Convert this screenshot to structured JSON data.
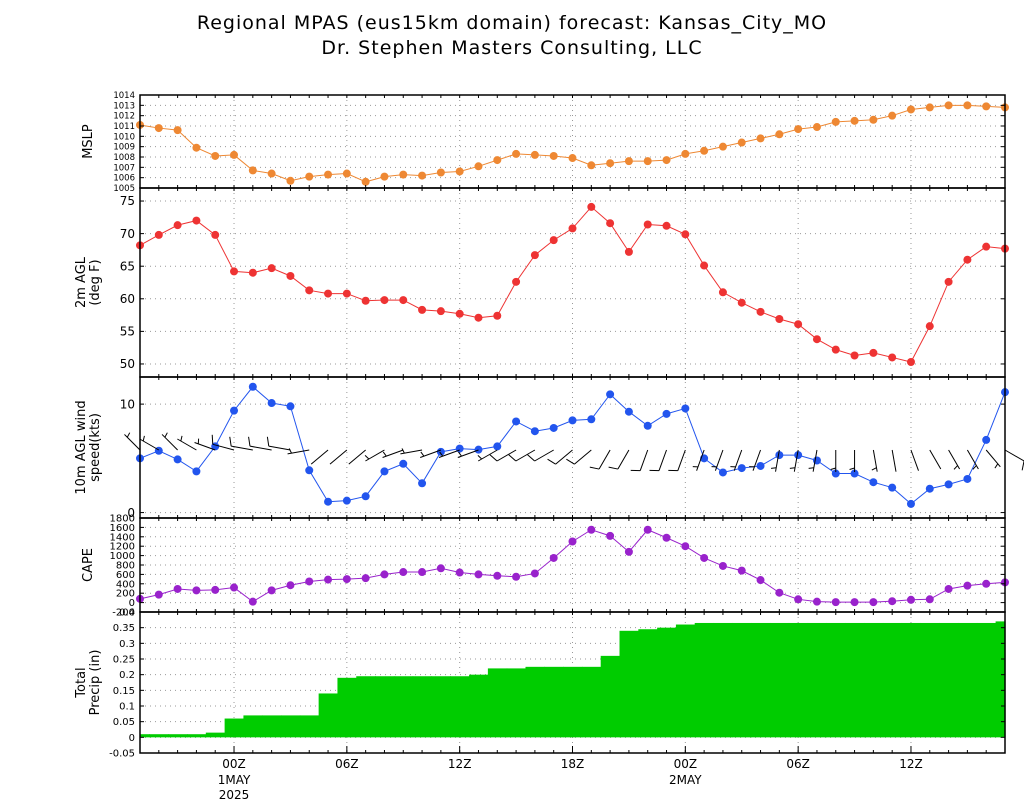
{
  "title_line1": "Regional MPAS (eus15km domain) forecast: Kansas_City_MO",
  "title_line2": "Dr. Stephen Masters Consulting, LLC",
  "time_axis": {
    "labels": [
      {
        "i": 5,
        "text": "00Z",
        "sub": [
          "1MAY",
          "2025"
        ]
      },
      {
        "i": 11,
        "text": "06Z",
        "sub": []
      },
      {
        "i": 17,
        "text": "12Z",
        "sub": []
      },
      {
        "i": 23,
        "text": "18Z",
        "sub": []
      },
      {
        "i": 29,
        "text": "00Z",
        "sub": [
          "2MAY"
        ]
      },
      {
        "i": 35,
        "text": "06Z",
        "sub": []
      },
      {
        "i": 41,
        "text": "12Z",
        "sub": []
      }
    ]
  },
  "chart_data": [
    {
      "type": "line",
      "ylabel": [
        "MSLP"
      ],
      "color": "#ee8833",
      "ylim": [
        1005,
        1014
      ],
      "yticks": [
        1005,
        1006,
        1007,
        1008,
        1009,
        1010,
        1011,
        1012,
        1013,
        1014
      ],
      "values": [
        1011.1,
        1010.8,
        1010.6,
        1008.9,
        1008.1,
        1008.2,
        1006.7,
        1006.4,
        1005.7,
        1006.1,
        1006.3,
        1006.4,
        1005.6,
        1006.1,
        1006.3,
        1006.2,
        1006.5,
        1006.6,
        1007.1,
        1007.7,
        1008.3,
        1008.2,
        1008.1,
        1007.9,
        1007.2,
        1007.4,
        1007.6,
        1007.6,
        1007.7,
        1008.3,
        1008.6,
        1009.0,
        1009.4,
        1009.8,
        1010.2,
        1010.7,
        1010.9,
        1011.4,
        1011.5,
        1011.6,
        1012.0,
        1012.6,
        1012.8,
        1013.0,
        1013.0,
        1012.9,
        1012.8
      ]
    },
    {
      "type": "line",
      "ylabel": [
        "2m AGL",
        "(deg F)"
      ],
      "color": "#ee3333",
      "ylim": [
        48,
        77
      ],
      "yticks": [
        50,
        55,
        60,
        65,
        70,
        75
      ],
      "values": [
        68.2,
        69.8,
        71.3,
        72.0,
        69.8,
        64.2,
        64.0,
        64.7,
        63.5,
        61.3,
        60.8,
        60.8,
        59.7,
        59.8,
        59.8,
        58.3,
        58.1,
        57.7,
        57.1,
        57.4,
        62.6,
        66.7,
        69.0,
        70.8,
        74.1,
        71.6,
        67.2,
        71.4,
        71.2,
        69.9,
        65.1,
        61.0,
        59.4,
        58.0,
        56.9,
        56.1,
        53.8,
        52.2,
        51.3,
        51.7,
        51.0,
        50.3,
        55.8,
        62.6,
        66.0,
        68.0,
        67.7
      ]
    },
    {
      "type": "line",
      "ylabel": [
        "10m AGL wind",
        "speed(kts)"
      ],
      "color": "#2255ee",
      "ylim": [
        -0.5,
        12.5
      ],
      "yticks": [
        0,
        10
      ],
      "values": [
        5.0,
        5.7,
        4.9,
        3.8,
        6.1,
        9.4,
        11.6,
        10.1,
        9.8,
        3.9,
        1.0,
        1.1,
        1.5,
        3.8,
        4.5,
        2.7,
        5.6,
        5.9,
        5.8,
        6.1,
        8.4,
        7.5,
        7.8,
        8.5,
        8.6,
        10.9,
        9.3,
        8.0,
        9.1,
        9.6,
        5.0,
        3.7,
        4.1,
        4.3,
        5.3,
        5.3,
        4.8,
        3.6,
        3.6,
        2.8,
        2.3,
        0.8,
        2.2,
        2.6,
        3.1,
        6.7,
        11.1
      ]
    },
    {
      "type": "line",
      "ylabel": [
        "CAPE"
      ],
      "color": "#9922cc",
      "ylim": [
        -200,
        1800
      ],
      "yticks": [
        -200,
        0,
        200,
        400,
        600,
        800,
        1000,
        1200,
        1400,
        1600,
        1800
      ],
      "values": [
        80,
        170,
        290,
        260,
        270,
        320,
        20,
        260,
        370,
        450,
        490,
        500,
        520,
        600,
        650,
        650,
        730,
        640,
        600,
        570,
        550,
        620,
        950,
        1300,
        1550,
        1420,
        1080,
        1550,
        1380,
        1200,
        950,
        780,
        680,
        480,
        210,
        70,
        20,
        10,
        10,
        10,
        30,
        60,
        70,
        290,
        360,
        400,
        430
      ]
    },
    {
      "type": "area",
      "ylabel": [
        "Total",
        "Precip (in)"
      ],
      "color": "#00cc00",
      "ylim": [
        -0.05,
        0.4
      ],
      "yticks": [
        -0.05,
        0,
        0.05,
        0.1,
        0.15,
        0.2,
        0.25,
        0.3,
        0.35,
        0.4
      ],
      "values": [
        0.01,
        0.01,
        0.01,
        0.01,
        0.015,
        0.06,
        0.07,
        0.07,
        0.07,
        0.07,
        0.14,
        0.19,
        0.195,
        0.195,
        0.195,
        0.195,
        0.195,
        0.195,
        0.2,
        0.22,
        0.22,
        0.225,
        0.225,
        0.225,
        0.225,
        0.26,
        0.34,
        0.345,
        0.35,
        0.36,
        0.365,
        0.365,
        0.365,
        0.365,
        0.365,
        0.365,
        0.365,
        0.365,
        0.365,
        0.365,
        0.365,
        0.365,
        0.365,
        0.365,
        0.365,
        0.365,
        0.37
      ]
    }
  ],
  "wind_barbs": [
    [
      315,
      5
    ],
    [
      300,
      6
    ],
    [
      315,
      5
    ],
    [
      300,
      4
    ],
    [
      290,
      6
    ],
    [
      285,
      9
    ],
    [
      280,
      11
    ],
    [
      280,
      10
    ],
    [
      280,
      10
    ],
    [
      260,
      4
    ],
    [
      230,
      1
    ],
    [
      230,
      1
    ],
    [
      230,
      2
    ],
    [
      240,
      4
    ],
    [
      250,
      5
    ],
    [
      260,
      3
    ],
    [
      250,
      6
    ],
    [
      250,
      6
    ],
    [
      250,
      6
    ],
    [
      240,
      6
    ],
    [
      240,
      8
    ],
    [
      240,
      8
    ],
    [
      240,
      8
    ],
    [
      230,
      9
    ],
    [
      230,
      9
    ],
    [
      210,
      11
    ],
    [
      210,
      9
    ],
    [
      200,
      8
    ],
    [
      200,
      9
    ],
    [
      200,
      10
    ],
    [
      200,
      5
    ],
    [
      200,
      4
    ],
    [
      200,
      4
    ],
    [
      200,
      4
    ],
    [
      190,
      5
    ],
    [
      190,
      5
    ],
    [
      190,
      5
    ],
    [
      180,
      4
    ],
    [
      180,
      4
    ],
    [
      170,
      3
    ],
    [
      170,
      2
    ],
    [
      160,
      1
    ],
    [
      150,
      2
    ],
    [
      150,
      3
    ],
    [
      150,
      3
    ],
    [
      140,
      7
    ],
    [
      120,
      11
    ]
  ]
}
